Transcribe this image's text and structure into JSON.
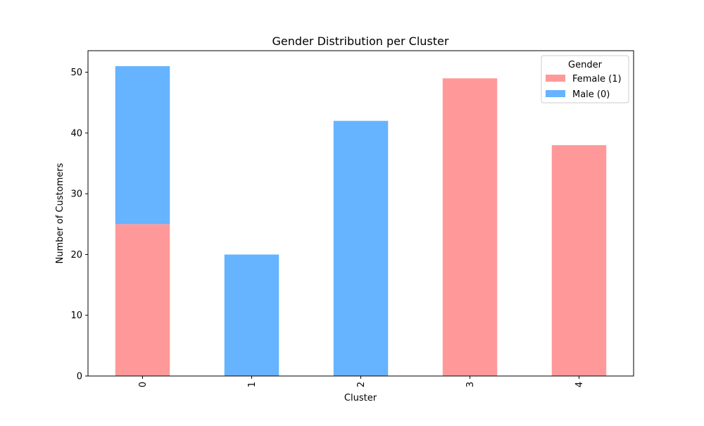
{
  "chart_data": {
    "type": "bar",
    "stacked": true,
    "title": "Gender Distribution per Cluster",
    "xlabel": "Cluster",
    "ylabel": "Number of Customers",
    "categories": [
      "0",
      "1",
      "2",
      "3",
      "4"
    ],
    "series": [
      {
        "name": "Female (1)",
        "color": "#ff9999",
        "values": [
          25,
          0,
          0,
          49,
          38
        ]
      },
      {
        "name": "Male (0)",
        "color": "#66b3ff",
        "values": [
          26,
          20,
          42,
          0,
          0
        ]
      }
    ],
    "ylim": [
      0,
      53.55
    ],
    "yticks": [
      0,
      10,
      20,
      30,
      40,
      50
    ],
    "grid": false,
    "legend": {
      "title": "Gender",
      "position": "top-right"
    }
  }
}
